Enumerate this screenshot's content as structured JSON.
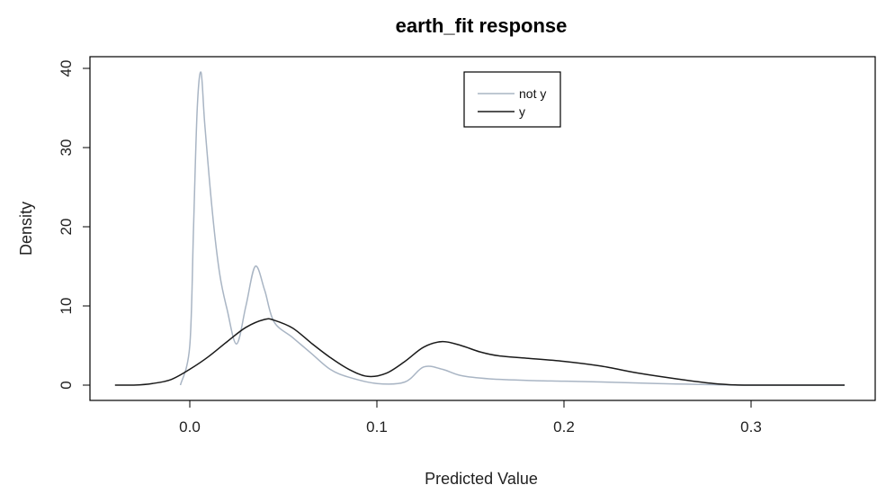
{
  "chart_data": {
    "type": "line",
    "title": "earth_fit response",
    "xlabel": "Predicted Value",
    "ylabel": "Density",
    "xlim": [
      -0.045,
      0.36
    ],
    "ylim": [
      0,
      40
    ],
    "x_ticks": [
      "0.0",
      "0.1",
      "0.2",
      "0.3"
    ],
    "x_tick_values": [
      0.0,
      0.1,
      0.2,
      0.3
    ],
    "y_ticks": [
      "0",
      "10",
      "20",
      "30",
      "40"
    ],
    "y_tick_values": [
      0,
      10,
      20,
      30,
      40
    ],
    "legend": {
      "position": "top-center"
    },
    "series": [
      {
        "name": "not y",
        "color": "#a9b5c4",
        "points": [
          [
            -0.005,
            0.0
          ],
          [
            0.0,
            5.0
          ],
          [
            0.002,
            20.0
          ],
          [
            0.004,
            35.0
          ],
          [
            0.006,
            39.5
          ],
          [
            0.008,
            33.0
          ],
          [
            0.012,
            22.0
          ],
          [
            0.016,
            14.0
          ],
          [
            0.02,
            9.5
          ],
          [
            0.025,
            5.2
          ],
          [
            0.03,
            10.0
          ],
          [
            0.035,
            15.0
          ],
          [
            0.04,
            12.0
          ],
          [
            0.045,
            8.0
          ],
          [
            0.055,
            6.0
          ],
          [
            0.065,
            4.0
          ],
          [
            0.075,
            2.0
          ],
          [
            0.085,
            1.0
          ],
          [
            0.1,
            0.2
          ],
          [
            0.115,
            0.4
          ],
          [
            0.125,
            2.3
          ],
          [
            0.135,
            2.0
          ],
          [
            0.145,
            1.2
          ],
          [
            0.16,
            0.8
          ],
          [
            0.18,
            0.6
          ],
          [
            0.2,
            0.5
          ],
          [
            0.22,
            0.4
          ],
          [
            0.25,
            0.2
          ],
          [
            0.27,
            0.1
          ],
          [
            0.3,
            0.0
          ],
          [
            0.35,
            0.0
          ]
        ]
      },
      {
        "name": "y",
        "color": "#1a1a1a",
        "points": [
          [
            -0.04,
            0.0
          ],
          [
            -0.03,
            0.0
          ],
          [
            -0.02,
            0.2
          ],
          [
            -0.01,
            0.7
          ],
          [
            0.0,
            2.0
          ],
          [
            0.01,
            3.6
          ],
          [
            0.02,
            5.5
          ],
          [
            0.03,
            7.3
          ],
          [
            0.04,
            8.3
          ],
          [
            0.045,
            8.2
          ],
          [
            0.055,
            7.2
          ],
          [
            0.065,
            5.3
          ],
          [
            0.075,
            3.5
          ],
          [
            0.085,
            2.0
          ],
          [
            0.095,
            1.1
          ],
          [
            0.105,
            1.5
          ],
          [
            0.115,
            3.0
          ],
          [
            0.125,
            4.8
          ],
          [
            0.135,
            5.5
          ],
          [
            0.145,
            5.0
          ],
          [
            0.155,
            4.2
          ],
          [
            0.165,
            3.7
          ],
          [
            0.18,
            3.4
          ],
          [
            0.2,
            3.0
          ],
          [
            0.22,
            2.4
          ],
          [
            0.24,
            1.5
          ],
          [
            0.26,
            0.8
          ],
          [
            0.28,
            0.2
          ],
          [
            0.3,
            0.0
          ],
          [
            0.35,
            0.0
          ]
        ]
      }
    ]
  }
}
